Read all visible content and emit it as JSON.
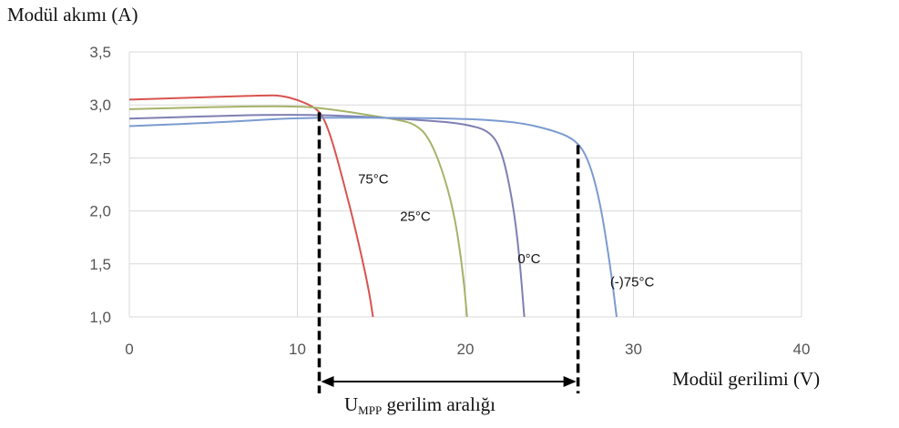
{
  "chart_data": {
    "type": "line",
    "title": "",
    "ylabel": "Modül akımı (A)",
    "xlabel": "Modül gerilimi (V)",
    "xlim": [
      0,
      40
    ],
    "ylim": [
      1.0,
      3.5
    ],
    "x_ticks": [
      "0",
      "10",
      "20",
      "30",
      "40"
    ],
    "y_ticks": [
      "1,0",
      "1,5",
      "2,0",
      "2,5",
      "3,0",
      "3,5"
    ],
    "grid": "on",
    "series": [
      {
        "name": "75°C",
        "color": "#d9534f",
        "points": [
          [
            0,
            3.05
          ],
          [
            4,
            3.07
          ],
          [
            8,
            3.09
          ],
          [
            9,
            3.09
          ],
          [
            10,
            3.05
          ],
          [
            11,
            2.98
          ],
          [
            11.5,
            2.9
          ],
          [
            12,
            2.7
          ],
          [
            12.7,
            2.3
          ],
          [
            13.5,
            1.8
          ],
          [
            14.2,
            1.3
          ],
          [
            14.5,
            1.0
          ]
        ]
      },
      {
        "name": "25°C",
        "color": "#a5b46a",
        "points": [
          [
            0,
            2.96
          ],
          [
            5,
            2.98
          ],
          [
            10,
            2.99
          ],
          [
            12,
            2.96
          ],
          [
            14,
            2.91
          ],
          [
            16,
            2.86
          ],
          [
            17,
            2.82
          ],
          [
            17.8,
            2.7
          ],
          [
            18.6,
            2.4
          ],
          [
            19.3,
            2.0
          ],
          [
            19.8,
            1.5
          ],
          [
            20.1,
            1.0
          ]
        ]
      },
      {
        "name": "0°C",
        "color": "#7e7fb3",
        "points": [
          [
            0,
            2.87
          ],
          [
            6,
            2.9
          ],
          [
            10,
            2.91
          ],
          [
            14,
            2.89
          ],
          [
            18,
            2.85
          ],
          [
            20,
            2.82
          ],
          [
            21.5,
            2.75
          ],
          [
            22.2,
            2.55
          ],
          [
            22.8,
            2.1
          ],
          [
            23.2,
            1.6
          ],
          [
            23.5,
            1.0
          ]
        ]
      },
      {
        "name": "(-)75°C",
        "color": "#7b9bd1",
        "points": [
          [
            0,
            2.8
          ],
          [
            6,
            2.84
          ],
          [
            10,
            2.88
          ],
          [
            15,
            2.88
          ],
          [
            20,
            2.87
          ],
          [
            23,
            2.84
          ],
          [
            25,
            2.77
          ],
          [
            26.5,
            2.68
          ],
          [
            27.3,
            2.5
          ],
          [
            28,
            2.1
          ],
          [
            28.6,
            1.5
          ],
          [
            29,
            1.0
          ]
        ]
      }
    ],
    "annotations": [
      {
        "text": "75°C",
        "x": 13.5,
        "y": 2.3
      },
      {
        "text": "25°C",
        "x": 16,
        "y": 1.95
      },
      {
        "text": "0°C",
        "x": 23,
        "y": 1.55
      },
      {
        "text": "(-)75°C",
        "x": 28.5,
        "y": 1.33
      }
    ],
    "mpp_lines": [
      {
        "x": 11.3,
        "y_top": 2.93
      },
      {
        "x": 26.7,
        "y_top": 2.62
      }
    ],
    "range_label_main": "U",
    "range_label_sub": "MPP",
    "range_label_rest": " gerilim aralığı"
  }
}
